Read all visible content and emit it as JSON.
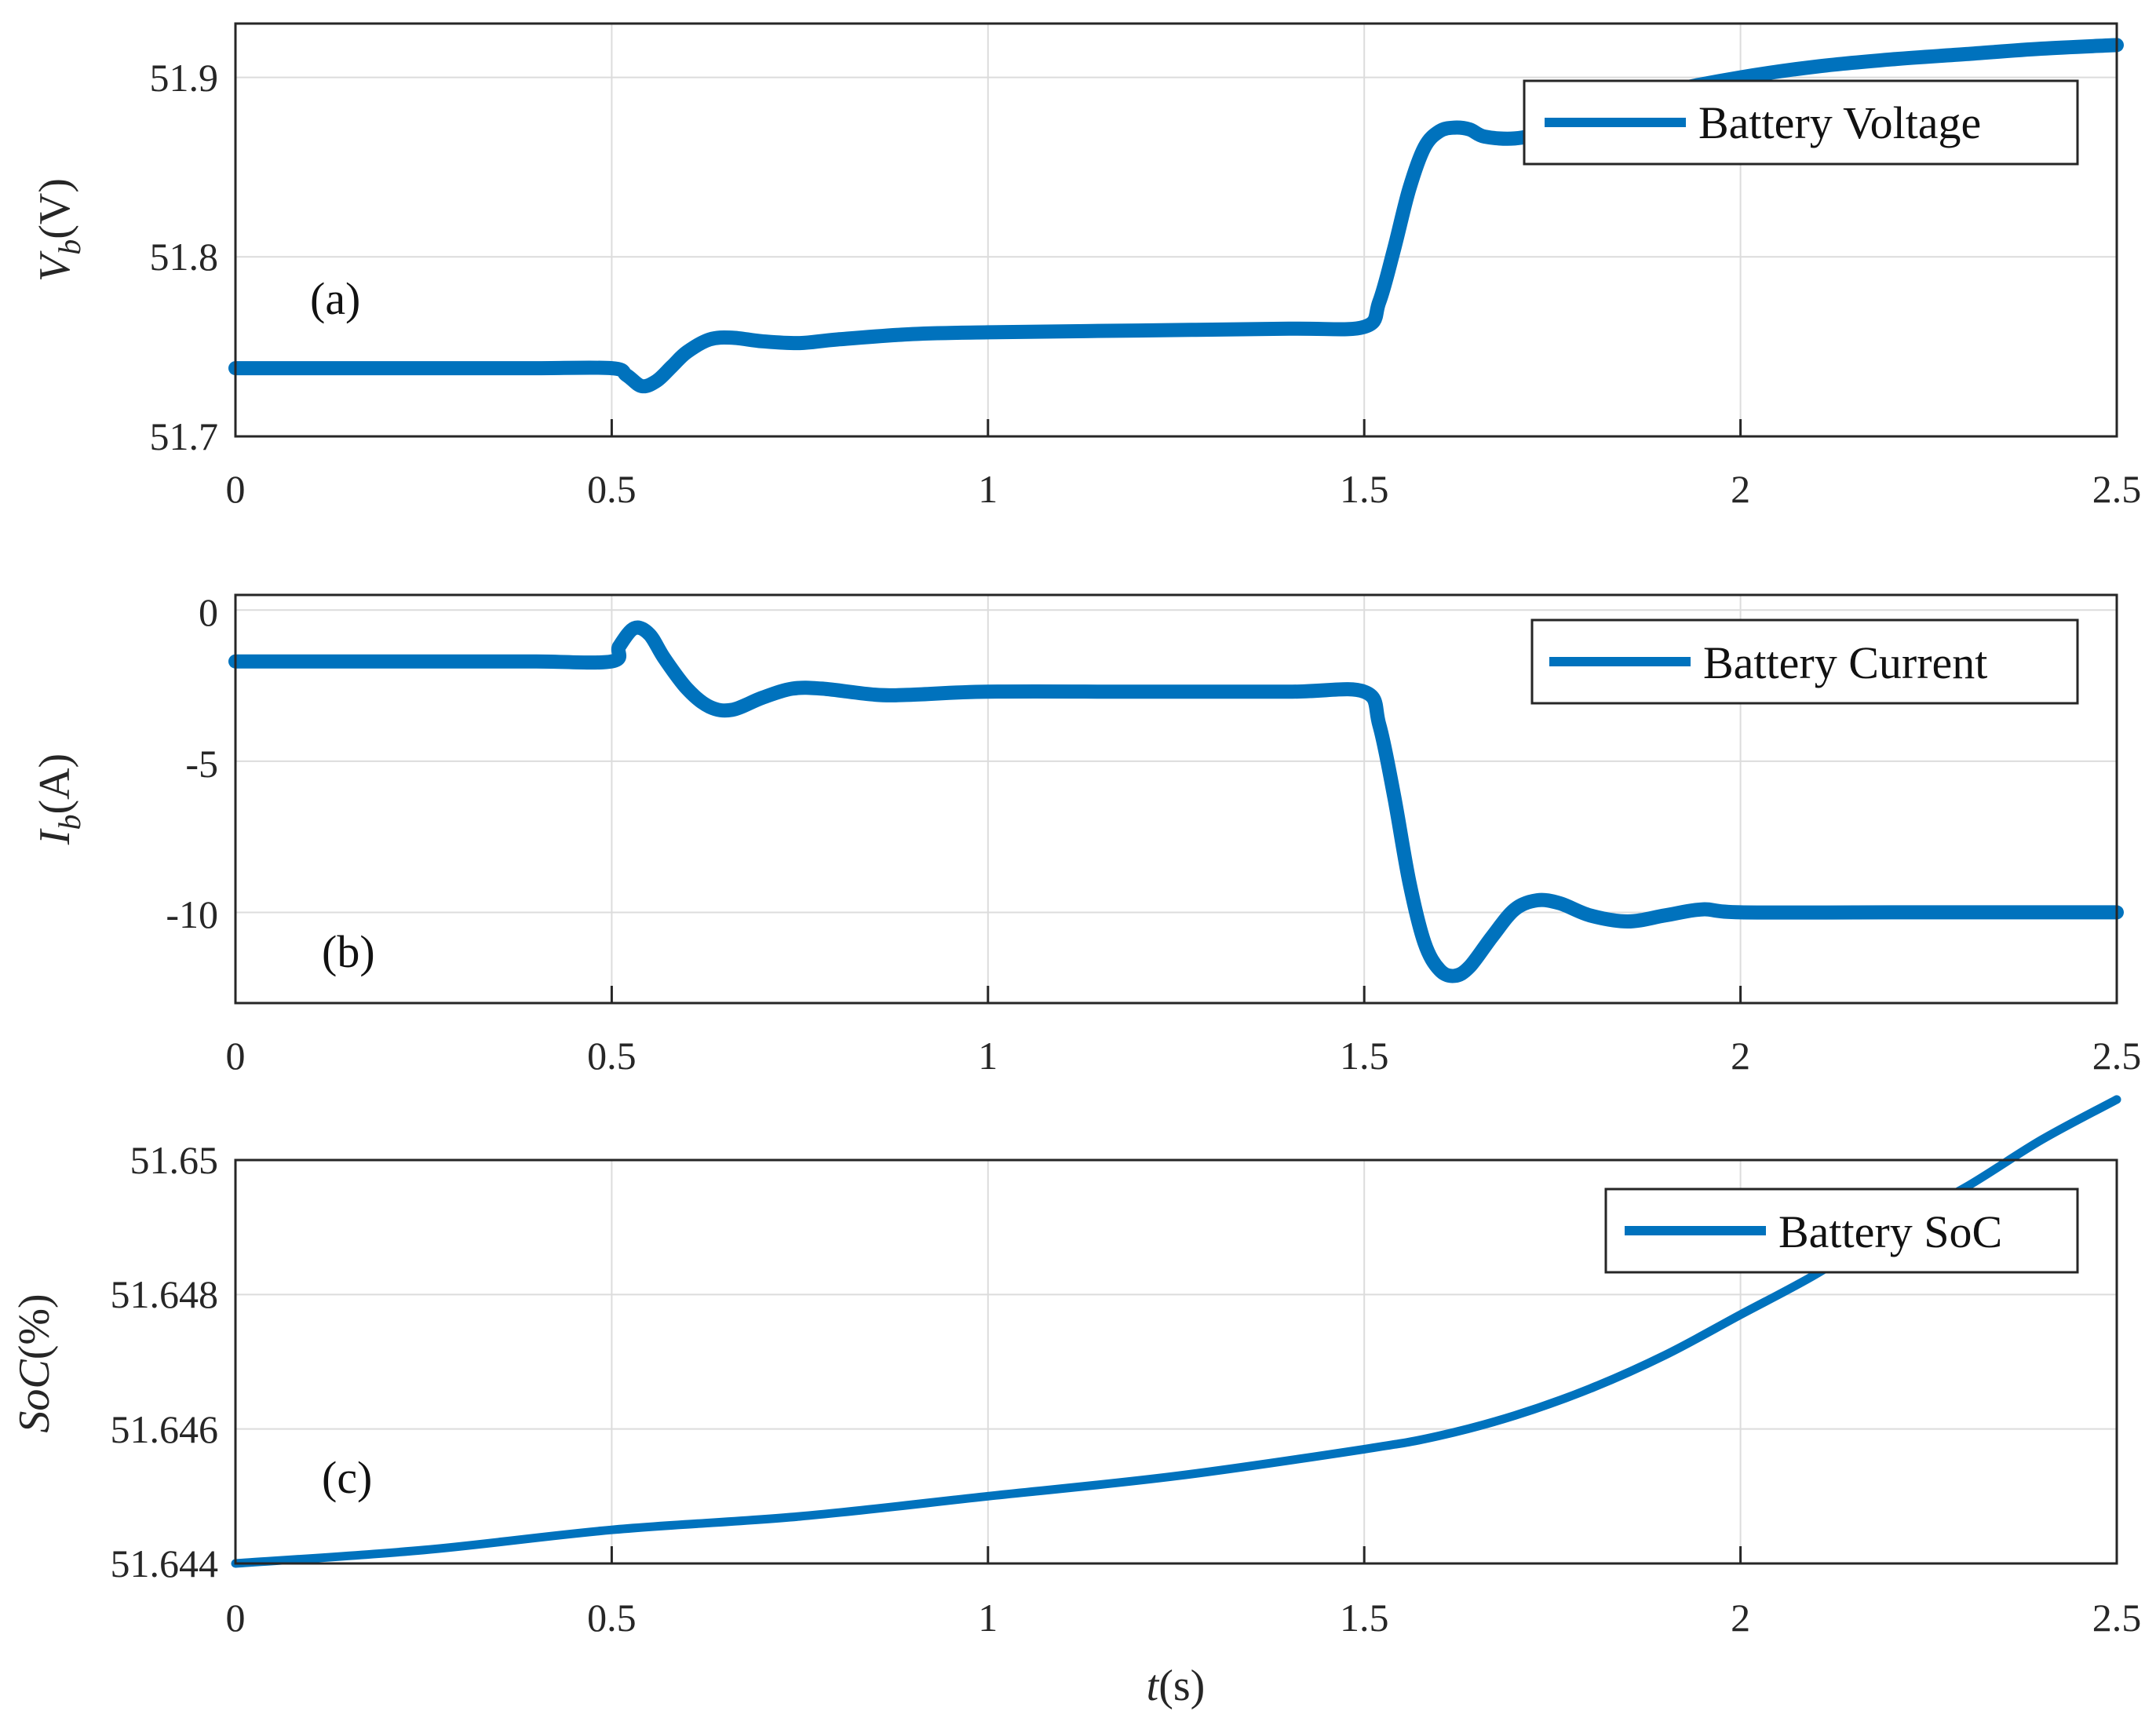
{
  "chart_data": [
    {
      "type": "line",
      "panel": "(a)",
      "ylabel": "V_b(V)",
      "ylabel_main": "V",
      "ylabel_sub": "b",
      "ylabel_unit": "(V)",
      "xlabel": "",
      "xlim": [
        0,
        2.5
      ],
      "ylim": [
        51.7,
        51.93
      ],
      "xticks": [
        "0",
        "0.5",
        "1",
        "1.5",
        "2",
        "2.5"
      ],
      "xtick_values": [
        0,
        0.5,
        1,
        1.5,
        2,
        2.5
      ],
      "yticks": [
        "51.7",
        "51.8",
        "51.9"
      ],
      "ytick_values": [
        51.7,
        51.8,
        51.9
      ],
      "grid": true,
      "legend_position": "top-right",
      "series": [
        {
          "name": "Battery Voltage",
          "color": "#0072bd",
          "x": [
            0,
            0.1,
            0.2,
            0.3,
            0.4,
            0.5,
            0.52,
            0.54,
            0.56,
            0.58,
            0.6,
            0.63,
            0.66,
            0.7,
            0.75,
            0.8,
            0.9,
            1.0,
            1.2,
            1.4,
            1.5,
            1.52,
            1.54,
            1.56,
            1.58,
            1.6,
            1.62,
            1.64,
            1.66,
            1.7,
            1.74,
            1.8,
            1.9,
            2.0,
            2.1,
            2.2,
            2.3,
            2.4,
            2.5
          ],
          "y": [
            51.738,
            51.738,
            51.738,
            51.738,
            51.738,
            51.738,
            51.734,
            51.728,
            51.731,
            51.739,
            51.747,
            51.754,
            51.755,
            51.753,
            51.752,
            51.754,
            51.757,
            51.758,
            51.759,
            51.76,
            51.761,
            51.775,
            51.805,
            51.838,
            51.861,
            51.87,
            51.872,
            51.871,
            51.867,
            51.866,
            51.87,
            51.882,
            51.892,
            51.9,
            51.906,
            51.91,
            51.913,
            51.916,
            51.918
          ]
        }
      ]
    },
    {
      "type": "line",
      "panel": "(b)",
      "ylabel": "I_b(A)",
      "ylabel_main": "I",
      "ylabel_sub": "b",
      "ylabel_unit": "(A)",
      "xlabel": "",
      "xlim": [
        0,
        2.5
      ],
      "ylim": [
        -13,
        0.5
      ],
      "xticks": [
        "0",
        "0.5",
        "1",
        "1.5",
        "2",
        "2.5"
      ],
      "xtick_values": [
        0,
        0.5,
        1,
        1.5,
        2,
        2.5
      ],
      "yticks": [
        "0",
        "-5",
        "-10"
      ],
      "ytick_values": [
        0,
        -5,
        -10
      ],
      "grid": true,
      "legend_position": "top-right",
      "series": [
        {
          "name": "Battery Current",
          "color": "#0072bd",
          "x": [
            0,
            0.1,
            0.2,
            0.3,
            0.4,
            0.5,
            0.51,
            0.53,
            0.55,
            0.57,
            0.6,
            0.63,
            0.66,
            0.7,
            0.74,
            0.78,
            0.85,
            0.9,
            1.0,
            1.2,
            1.4,
            1.5,
            1.52,
            1.54,
            1.56,
            1.58,
            1.6,
            1.62,
            1.64,
            1.67,
            1.7,
            1.73,
            1.76,
            1.8,
            1.85,
            1.9,
            1.95,
            2.0,
            2.2,
            2.5
          ],
          "y": [
            -1.7,
            -1.7,
            -1.7,
            -1.7,
            -1.7,
            -1.7,
            -1.2,
            -0.6,
            -0.8,
            -1.6,
            -2.6,
            -3.2,
            -3.3,
            -2.9,
            -2.6,
            -2.6,
            -2.8,
            -2.8,
            -2.7,
            -2.7,
            -2.7,
            -2.7,
            -3.8,
            -6.2,
            -9.0,
            -11.0,
            -11.9,
            -12.1,
            -11.8,
            -10.8,
            -9.9,
            -9.6,
            -9.7,
            -10.1,
            -10.3,
            -10.1,
            -9.9,
            -10.0,
            -10.0,
            -10.0
          ]
        }
      ]
    },
    {
      "type": "line",
      "panel": "(c)",
      "ylabel": "SoC(%)",
      "ylabel_main": "SoC",
      "ylabel_sub": "",
      "ylabel_unit": "(%)",
      "xlabel": "t(s)",
      "xlabel_main": "t",
      "xlabel_unit": "(s)",
      "xlim": [
        0,
        2.5
      ],
      "ylim": [
        51.644,
        51.65
      ],
      "xticks": [
        "0",
        "0.5",
        "1",
        "1.5",
        "2",
        "2.5"
      ],
      "xtick_values": [
        0,
        0.5,
        1,
        1.5,
        2,
        2.5
      ],
      "yticks": [
        "51.644",
        "51.646",
        "51.648",
        "51.65"
      ],
      "ytick_values": [
        51.644,
        51.646,
        51.648,
        51.65
      ],
      "grid": true,
      "legend_position": "top-right",
      "series": [
        {
          "name": "Battery SoC",
          "color": "#0072bd",
          "x": [
            0,
            0.25,
            0.5,
            0.75,
            1.0,
            1.25,
            1.5,
            1.6,
            1.7,
            1.8,
            1.9,
            2.0,
            2.1,
            2.2,
            2.3,
            2.4,
            2.5
          ],
          "y": [
            51.644,
            51.6442,
            51.6445,
            51.6447,
            51.645,
            51.6453,
            51.6457,
            51.6459,
            51.6462,
            51.6466,
            51.6471,
            51.6477,
            51.6483,
            51.649,
            51.6496,
            51.6503,
            51.6509
          ]
        }
      ]
    }
  ]
}
